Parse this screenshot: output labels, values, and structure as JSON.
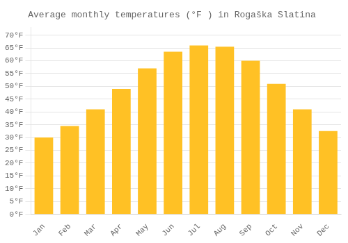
{
  "chart_data": {
    "type": "bar",
    "title": "Average monthly temperatures (°F ) in Rogaška Slatina",
    "categories": [
      "Jan",
      "Feb",
      "Mar",
      "Apr",
      "May",
      "Jun",
      "Jul",
      "Aug",
      "Sep",
      "Oct",
      "Nov",
      "Dec"
    ],
    "values": [
      30.0,
      34.5,
      41.0,
      49.0,
      57.0,
      63.5,
      66.0,
      65.5,
      60.0,
      51.0,
      41.0,
      32.5
    ],
    "color": "#FFC125",
    "ylim": [
      0,
      73
    ],
    "yticks": [
      {
        "value": 0,
        "label": "0°F"
      },
      {
        "value": 5,
        "label": "5°F"
      },
      {
        "value": 10,
        "label": "10°F"
      },
      {
        "value": 15,
        "label": "15°F"
      },
      {
        "value": 20,
        "label": "20°F"
      },
      {
        "value": 25,
        "label": "25°F"
      },
      {
        "value": 30,
        "label": "30°F"
      },
      {
        "value": 35,
        "label": "35°F"
      },
      {
        "value": 40,
        "label": "40°F"
      },
      {
        "value": 45,
        "label": "45°F"
      },
      {
        "value": 50,
        "label": "50°F"
      },
      {
        "value": 55,
        "label": "55°F"
      },
      {
        "value": 60,
        "label": "60°F"
      },
      {
        "value": 65,
        "label": "65°F"
      },
      {
        "value": 70,
        "label": "70°F"
      }
    ],
    "grid": true
  }
}
